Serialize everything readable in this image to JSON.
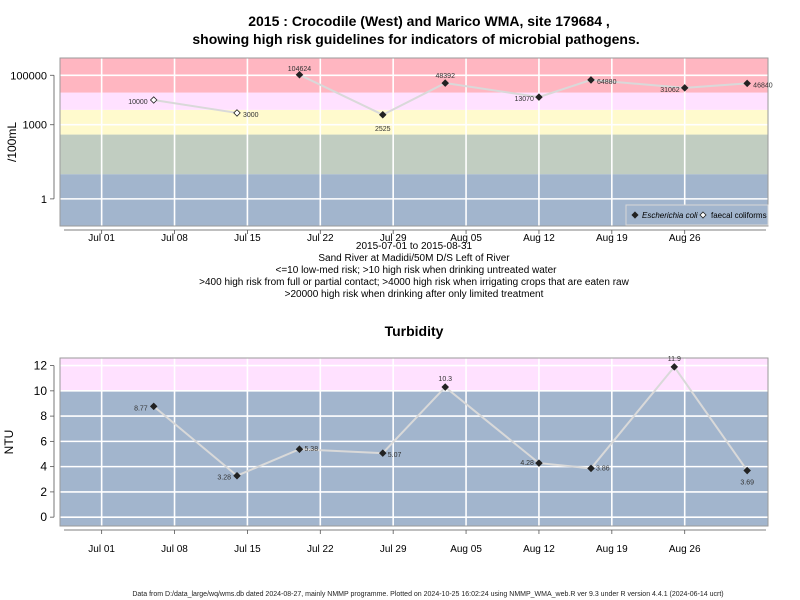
{
  "chart_data": [
    {
      "type": "line",
      "title": "2015 : Crocodile (West) and Marico WMA, site 179684 ,",
      "title_line2": "showing high risk guidelines for indicators of microbial pathogens.",
      "ylabel": "/100mL",
      "y_scale": "log",
      "ylim": [
        0.08,
        500000
      ],
      "y_ticks": [
        1,
        1000,
        100000
      ],
      "y_tick_labels": [
        "1",
        "1000",
        "100000"
      ],
      "x_range": [
        "2015-06-27",
        "2015-09-03"
      ],
      "x_ticks": [
        "2015-07-01",
        "2015-07-08",
        "2015-07-15",
        "2015-07-22",
        "2015-07-29",
        "2015-08-05",
        "2015-08-12",
        "2015-08-19",
        "2015-08-26"
      ],
      "x_tick_labels": [
        "Jul 01",
        "Jul 08",
        "Jul 15",
        "Jul 22",
        "Jul 29",
        "Aug 05",
        "Aug 12",
        "Aug 19",
        "Aug 26"
      ],
      "grid": true,
      "bands": [
        {
          "from": 0.08,
          "to": 10,
          "color": "#a2b5cd"
        },
        {
          "from": 10,
          "to": 400,
          "color": "#c1cdc1"
        },
        {
          "from": 400,
          "to": 4000,
          "color": "#fffacd"
        },
        {
          "from": 4000,
          "to": 20000,
          "color": "#ffe1ff"
        },
        {
          "from": 20000,
          "to": 500000,
          "color": "#ffb6c1"
        }
      ],
      "series": [
        {
          "name": "Escherichia coli",
          "marker": "filled-diamond",
          "points": [
            {
              "x": "2015-07-20",
              "y": 104624,
              "label": "104624"
            },
            {
              "x": "2015-07-28",
              "y": 2525,
              "label": "2525"
            },
            {
              "x": "2015-08-03",
              "y": 48392,
              "label": "48392"
            },
            {
              "x": "2015-08-12",
              "y": 13070,
              "label": "13070"
            },
            {
              "x": "2015-08-17",
              "y": 64880,
              "label": "64880"
            },
            {
              "x": "2015-08-26",
              "y": 31062,
              "label": "31062"
            },
            {
              "x": "2015-09-01",
              "y": 46840,
              "label": "46840"
            }
          ]
        },
        {
          "name": "faecal coliforms",
          "marker": "open-diamond",
          "points": [
            {
              "x": "2015-07-06",
              "y": 10000,
              "label": "10000"
            },
            {
              "x": "2015-07-14",
              "y": 3000,
              "label": "3000"
            }
          ]
        }
      ],
      "legend_position": "bottom-right",
      "subtitle_lines": [
        "2015-07-01 to 2015-08-31",
        "Sand River at Madidi/50M D/S Left of River",
        "<=10 low-med risk; >10 high risk when drinking untreated water",
        ">400 high risk from full or partial contact; >4000 high risk when irrigating crops that are eaten raw",
        ">20000 high risk when drinking after only limited treatment"
      ]
    },
    {
      "type": "line",
      "title": "Turbidity",
      "ylabel": "NTU",
      "ylim": [
        -0.7,
        12.6
      ],
      "y_ticks": [
        0,
        2,
        4,
        6,
        8,
        10,
        12
      ],
      "y_tick_labels": [
        "0",
        "2",
        "4",
        "6",
        "8",
        "10",
        "12"
      ],
      "x_range": [
        "2015-06-27",
        "2015-09-03"
      ],
      "x_ticks": [
        "2015-07-01",
        "2015-07-08",
        "2015-07-15",
        "2015-07-22",
        "2015-07-29",
        "2015-08-05",
        "2015-08-12",
        "2015-08-19",
        "2015-08-26"
      ],
      "x_tick_labels": [
        "Jul 01",
        "Jul 08",
        "Jul 15",
        "Jul 22",
        "Jul 29",
        "Aug 05",
        "Aug 12",
        "Aug 19",
        "Aug 26"
      ],
      "grid": true,
      "bands": [
        {
          "from": -0.7,
          "to": 10,
          "color": "#a2b5cd"
        },
        {
          "from": 10,
          "to": 12.6,
          "color": "#ffe1ff"
        }
      ],
      "series": [
        {
          "marker": "filled-diamond",
          "points": [
            {
              "x": "2015-07-06",
              "y": 8.77,
              "label": "8.77"
            },
            {
              "x": "2015-07-14",
              "y": 3.28,
              "label": "3.28"
            },
            {
              "x": "2015-07-20",
              "y": 5.38,
              "label": "5.38"
            },
            {
              "x": "2015-07-28",
              "y": 5.07,
              "label": "5.07"
            },
            {
              "x": "2015-08-03",
              "y": 10.3,
              "label": "10.3"
            },
            {
              "x": "2015-08-12",
              "y": 4.28,
              "label": "4.28"
            },
            {
              "x": "2015-08-17",
              "y": 3.86,
              "label": "3.86"
            },
            {
              "x": "2015-08-25",
              "y": 11.9,
              "label": "11.9"
            },
            {
              "x": "2015-09-01",
              "y": 3.69,
              "label": "3.69"
            }
          ]
        }
      ]
    }
  ],
  "footer": "Data from D:/data_large/wq/wms.db dated 2024-08-27, mainly NMMP programme. Plotted on 2024-10-25 16:02:24 using NMMP_WMA_web.R ver 9.3 under R version 4.4.1 (2024-06-14 ucrt)"
}
